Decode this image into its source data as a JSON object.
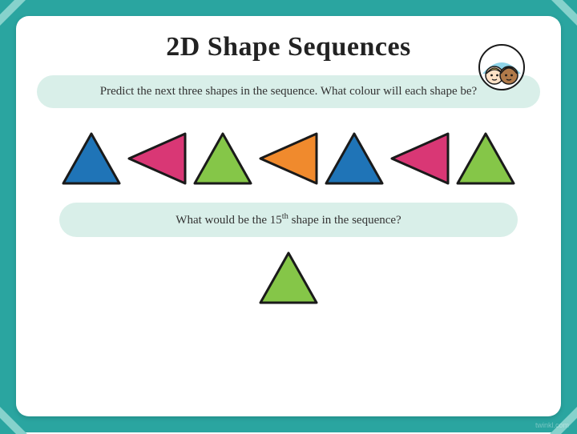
{
  "title": "2D Shape Sequences",
  "instruction": "Predict the next three shapes in the sequence. What colour will each shape be?",
  "question_prefix": "What would be the 15",
  "question_sup": "th",
  "question_suffix": " shape in the sequence?",
  "colors": {
    "border_bg": "#2aa5a0",
    "panel_bg": "#ffffff",
    "pill_bg": "#d9efe9",
    "stroke": "#1a1a1a",
    "blue": "#1f74b7",
    "pink": "#d93775",
    "green": "#85c648",
    "orange": "#f08a2d"
  },
  "sequence_shapes": [
    {
      "orientation": "up",
      "fill": "#1f74b7"
    },
    {
      "orientation": "left",
      "fill": "#d93775"
    },
    {
      "orientation": "up",
      "fill": "#85c648"
    },
    {
      "orientation": "left",
      "fill": "#f08a2d"
    },
    {
      "orientation": "up",
      "fill": "#1f74b7"
    },
    {
      "orientation": "left",
      "fill": "#d93775"
    },
    {
      "orientation": "up",
      "fill": "#85c648"
    }
  ],
  "answer_shape": {
    "orientation": "up",
    "fill": "#85c648"
  },
  "triangle_size": {
    "w": 78,
    "h": 70,
    "stroke_width": 3
  },
  "watermark": "twinkl.com"
}
